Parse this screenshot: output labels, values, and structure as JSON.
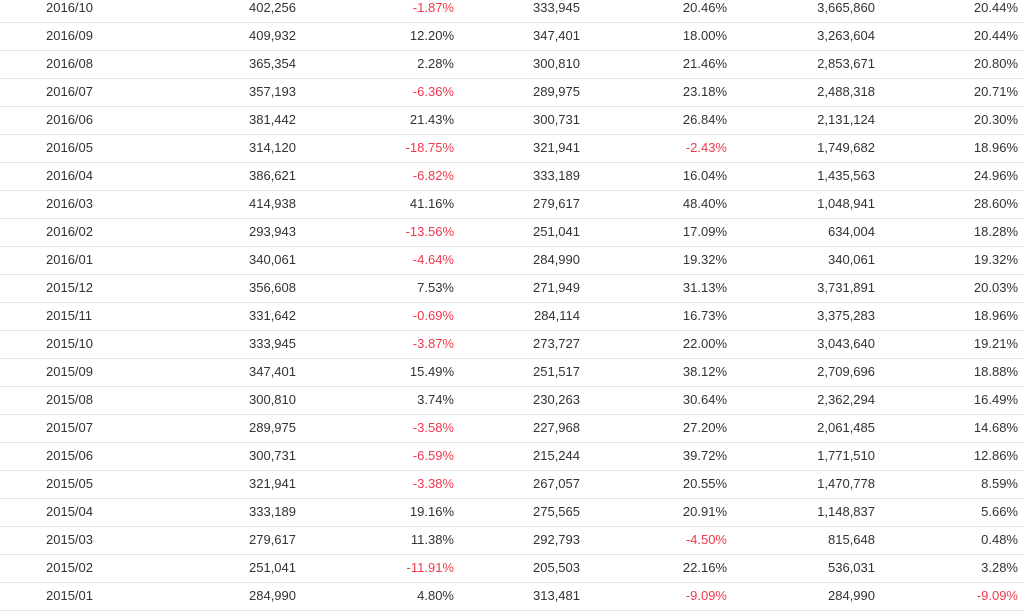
{
  "colors": {
    "negative": "#f0394a",
    "text": "#333333",
    "row_divider": "#e4e4e4"
  },
  "rows": [
    [
      "2016/10",
      "402,256",
      "-1.87%",
      "333,945",
      "20.46%",
      "3,665,860",
      "20.44%"
    ],
    [
      "2016/09",
      "409,932",
      "12.20%",
      "347,401",
      "18.00%",
      "3,263,604",
      "20.44%"
    ],
    [
      "2016/08",
      "365,354",
      "2.28%",
      "300,810",
      "21.46%",
      "2,853,671",
      "20.80%"
    ],
    [
      "2016/07",
      "357,193",
      "-6.36%",
      "289,975",
      "23.18%",
      "2,488,318",
      "20.71%"
    ],
    [
      "2016/06",
      "381,442",
      "21.43%",
      "300,731",
      "26.84%",
      "2,131,124",
      "20.30%"
    ],
    [
      "2016/05",
      "314,120",
      "-18.75%",
      "321,941",
      "-2.43%",
      "1,749,682",
      "18.96%"
    ],
    [
      "2016/04",
      "386,621",
      "-6.82%",
      "333,189",
      "16.04%",
      "1,435,563",
      "24.96%"
    ],
    [
      "2016/03",
      "414,938",
      "41.16%",
      "279,617",
      "48.40%",
      "1,048,941",
      "28.60%"
    ],
    [
      "2016/02",
      "293,943",
      "-13.56%",
      "251,041",
      "17.09%",
      "634,004",
      "18.28%"
    ],
    [
      "2016/01",
      "340,061",
      "-4.64%",
      "284,990",
      "19.32%",
      "340,061",
      "19.32%"
    ],
    [
      "2015/12",
      "356,608",
      "7.53%",
      "271,949",
      "31.13%",
      "3,731,891",
      "20.03%"
    ],
    [
      "2015/11",
      "331,642",
      "-0.69%",
      "284,114",
      "16.73%",
      "3,375,283",
      "18.96%"
    ],
    [
      "2015/10",
      "333,945",
      "-3.87%",
      "273,727",
      "22.00%",
      "3,043,640",
      "19.21%"
    ],
    [
      "2015/09",
      "347,401",
      "15.49%",
      "251,517",
      "38.12%",
      "2,709,696",
      "18.88%"
    ],
    [
      "2015/08",
      "300,810",
      "3.74%",
      "230,263",
      "30.64%",
      "2,362,294",
      "16.49%"
    ],
    [
      "2015/07",
      "289,975",
      "-3.58%",
      "227,968",
      "27.20%",
      "2,061,485",
      "14.68%"
    ],
    [
      "2015/06",
      "300,731",
      "-6.59%",
      "215,244",
      "39.72%",
      "1,771,510",
      "12.86%"
    ],
    [
      "2015/05",
      "321,941",
      "-3.38%",
      "267,057",
      "20.55%",
      "1,470,778",
      "8.59%"
    ],
    [
      "2015/04",
      "333,189",
      "19.16%",
      "275,565",
      "20.91%",
      "1,148,837",
      "5.66%"
    ],
    [
      "2015/03",
      "279,617",
      "11.38%",
      "292,793",
      "-4.50%",
      "815,648",
      "0.48%"
    ],
    [
      "2015/02",
      "251,041",
      "-11.91%",
      "205,503",
      "22.16%",
      "536,031",
      "3.28%"
    ],
    [
      "2015/01",
      "284,990",
      "4.80%",
      "313,481",
      "-9.09%",
      "284,990",
      "-9.09%"
    ]
  ]
}
